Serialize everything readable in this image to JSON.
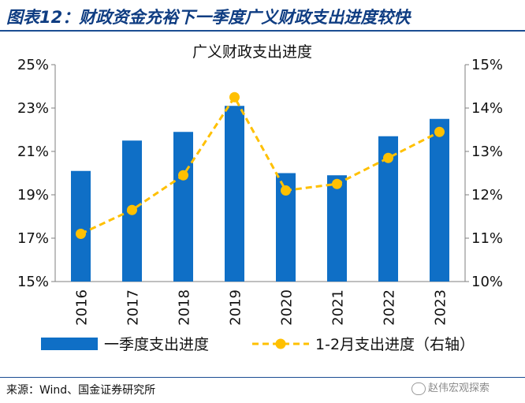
{
  "header": {
    "title": "图表12：财政资金充裕下一季度广义财政支出进度较快"
  },
  "footer": {
    "source": "来源：Wind、国金证券研究所",
    "watermark": "赵伟宏观探索"
  },
  "colors": {
    "bar": "#0f6fc6",
    "line": "#ffc000",
    "title_blue": "#0f3d82"
  },
  "chart_data": {
    "type": "bar",
    "title": "广义财政支出进度",
    "categories": [
      "2016",
      "2017",
      "2018",
      "2019",
      "2020",
      "2021",
      "2022",
      "2023"
    ],
    "series": [
      {
        "name": "一季度支出进度",
        "type": "bar",
        "axis": "left",
        "values": [
          20.1,
          21.5,
          21.9,
          23.1,
          20.0,
          19.9,
          21.7,
          22.5
        ]
      },
      {
        "name": "1-2月支出进度（右轴）",
        "type": "line",
        "style": "dashed",
        "axis": "right",
        "values": [
          11.1,
          11.65,
          12.45,
          14.25,
          12.1,
          12.25,
          12.85,
          13.45
        ]
      }
    ],
    "ylim_left": [
      15,
      25
    ],
    "yticks_left": [
      "15%",
      "17%",
      "19%",
      "21%",
      "23%",
      "25%"
    ],
    "yticks_left_values": [
      15,
      17,
      19,
      21,
      23,
      25
    ],
    "ylim_right": [
      10,
      15
    ],
    "yticks_right": [
      "10%",
      "11%",
      "12%",
      "13%",
      "14%",
      "15%"
    ],
    "yticks_right_values": [
      10,
      11,
      12,
      13,
      14,
      15
    ],
    "grid": false,
    "legend_position": "bottom"
  }
}
